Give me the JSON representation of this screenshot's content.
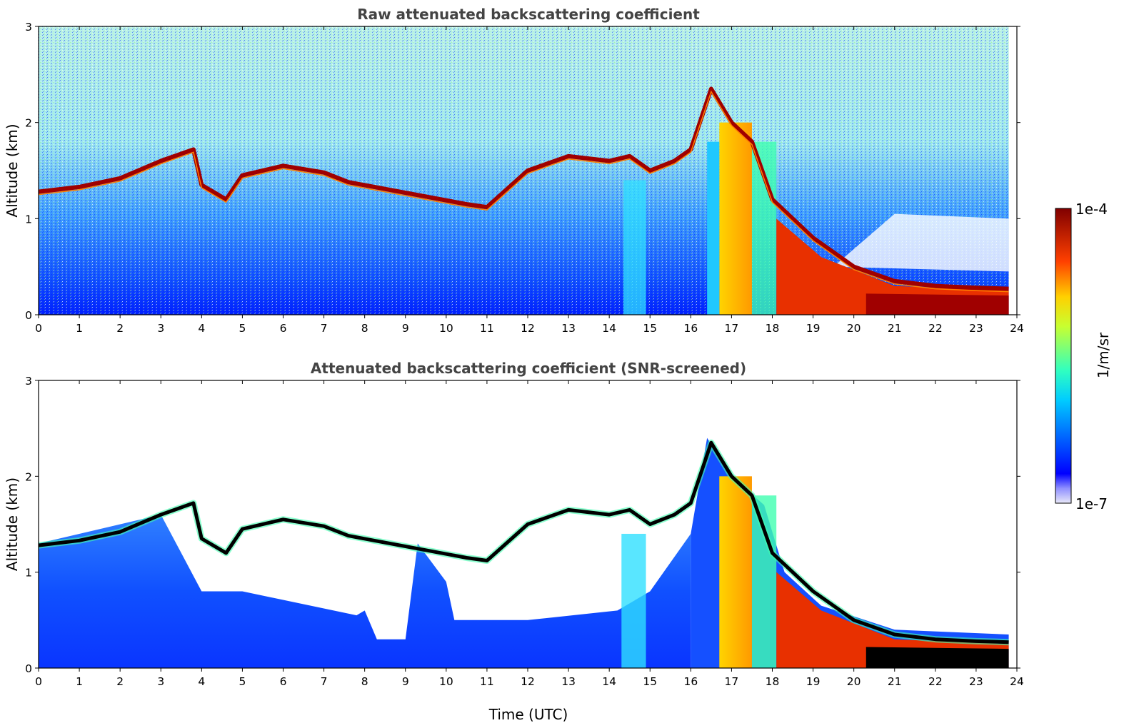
{
  "chart_data": [
    {
      "type": "heatmap",
      "title": "Raw attenuated backscattering coefficient",
      "xlabel": "",
      "ylabel": "Altitude (km)",
      "xlim": [
        0,
        24
      ],
      "ylim": [
        0,
        3
      ],
      "xticks": [
        "0",
        "1",
        "2",
        "3",
        "4",
        "5",
        "6",
        "7",
        "8",
        "9",
        "10",
        "11",
        "12",
        "13",
        "14",
        "15",
        "16",
        "17",
        "18",
        "19",
        "20",
        "21",
        "22",
        "23",
        "24"
      ],
      "yticks": [
        "0",
        "1",
        "2",
        "3"
      ],
      "data_end_hour": 23.8,
      "cloud_layer": {
        "hours": [
          0,
          1,
          2,
          3,
          3.8,
          4,
          4.6,
          5,
          6,
          7,
          7.6,
          10.5,
          11,
          12,
          13,
          14,
          14.5,
          15,
          15.6,
          16,
          16.5,
          17,
          17.5,
          18,
          19,
          20,
          21,
          22,
          23,
          23.8
        ],
        "altitude_km": [
          1.28,
          1.33,
          1.42,
          1.6,
          1.72,
          1.35,
          1.2,
          1.45,
          1.55,
          1.48,
          1.38,
          1.15,
          1.12,
          1.5,
          1.65,
          1.6,
          1.65,
          1.5,
          1.6,
          1.72,
          2.35,
          2.0,
          1.8,
          1.2,
          0.8,
          0.5,
          0.35,
          0.3,
          0.28,
          0.27
        ]
      },
      "colorbar": {
        "label": "1/m/sr",
        "min_label": "1e-7",
        "max_label": "1e-4",
        "scale": "log",
        "colormap": "jet"
      }
    },
    {
      "type": "heatmap",
      "title": "Attenuated backscattering coefficient (SNR-screened)",
      "xlabel": "Time (UTC)",
      "ylabel": "Altitude (km)",
      "xlim": [
        0,
        24
      ],
      "ylim": [
        0,
        3
      ],
      "xticks": [
        "0",
        "1",
        "2",
        "3",
        "4",
        "5",
        "6",
        "7",
        "8",
        "9",
        "10",
        "11",
        "12",
        "13",
        "14",
        "15",
        "16",
        "17",
        "18",
        "19",
        "20",
        "21",
        "22",
        "23",
        "24"
      ],
      "yticks": [
        "0",
        "1",
        "2",
        "3"
      ],
      "data_end_hour": 23.8,
      "screened_boundary": {
        "hours": [
          0,
          3,
          4,
          5,
          7.8,
          8,
          8.3,
          9,
          9.3,
          10,
          10.2,
          12,
          14.2,
          15,
          16
        ],
        "altitude_km": [
          1.3,
          1.6,
          0.8,
          0.8,
          0.55,
          0.6,
          0.3,
          0.3,
          1.3,
          0.9,
          0.5,
          0.5,
          0.6,
          0.8,
          1.4
        ]
      },
      "colorbar": {
        "label": "1/m/sr",
        "min_label": "1e-7",
        "max_label": "1e-4",
        "scale": "log",
        "colormap": "jet"
      }
    }
  ]
}
